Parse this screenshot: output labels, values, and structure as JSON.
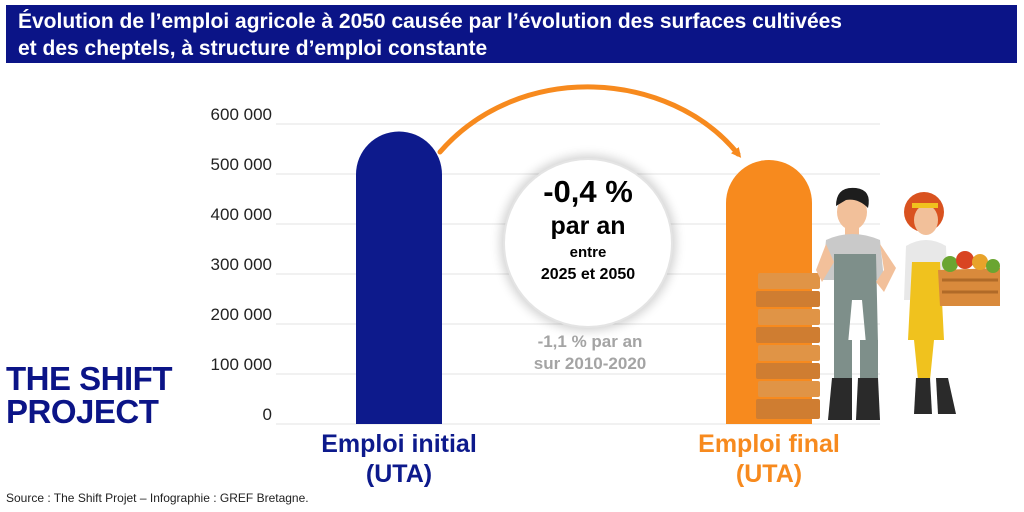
{
  "title": {
    "line1": "Évolution de l’emploi agricole à 2050 causée par l’évolution des surfaces cultivées",
    "line2": "et des cheptels, à structure d’emploi constante"
  },
  "chart_data": {
    "type": "bar",
    "categories": [
      "Emploi initial (UTA)",
      "Emploi final (UTA)"
    ],
    "category_lines": [
      [
        "Emploi initial",
        "(UTA)"
      ],
      [
        "Emploi final",
        "(UTA)"
      ]
    ],
    "values": [
      585000,
      528000
    ],
    "colors": [
      "#0d1a8c",
      "#f78a1e"
    ],
    "yticks": [
      0,
      100000,
      200000,
      300000,
      400000,
      500000,
      600000
    ],
    "ytick_labels": [
      "0",
      "100 000",
      "200 000",
      "300 000",
      "400 000",
      "500 000",
      "600 000"
    ],
    "ylim": [
      0,
      600000
    ],
    "grid": true,
    "annotation": {
      "value": "-0,4 %",
      "unit": "par an",
      "between": "entre",
      "period": "2025 et 2050",
      "historical_line1": "-1,1 % par an",
      "historical_line2": "sur 2010-2020"
    }
  },
  "logo": {
    "line1": "THE SHIFT",
    "line2": "PROJECT"
  },
  "source": "Source : The Shift Projet – Infographie : GREF Bretagne.",
  "colors": {
    "title_bar": "#0b1487",
    "initial": "#0d1a8c",
    "final": "#f78a1e",
    "arrow": "#f78a1e",
    "historical_text": "#a4a4a4"
  }
}
